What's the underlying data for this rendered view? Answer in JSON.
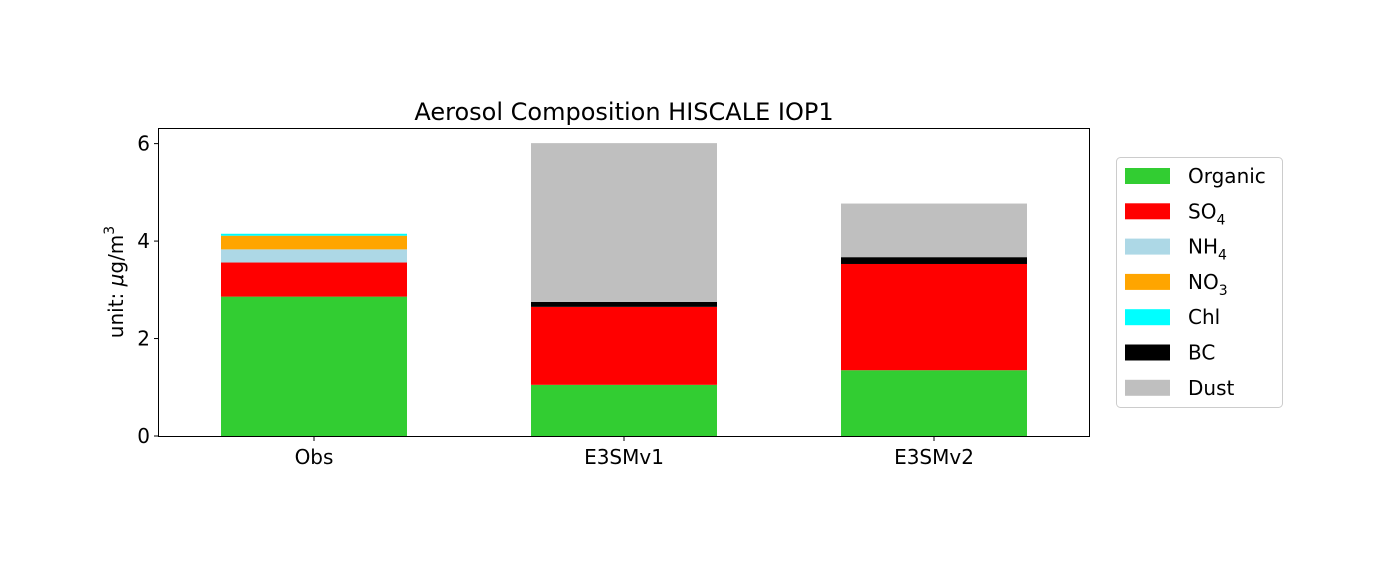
{
  "chart_data": {
    "type": "bar",
    "stacked": true,
    "title": "Aerosol Composition  HISCALE IOP1",
    "xlabel": "",
    "ylabel": {
      "prefix": "unit: ",
      "mu": "μ",
      "unit": "g/m",
      "sup": "3"
    },
    "ylim": [
      0,
      6.3
    ],
    "yticks": [
      0,
      2,
      4,
      6
    ],
    "ytick_labels": [
      "0",
      "2",
      "4",
      "6"
    ],
    "categories": [
      "Obs",
      "E3SMv1",
      "E3SMv2"
    ],
    "grid": false,
    "legend_position": "right",
    "series": [
      {
        "name": "Organic",
        "label": {
          "base": "Organic",
          "sub": ""
        },
        "color": "#32cd32",
        "values": [
          2.86,
          1.05,
          1.35
        ]
      },
      {
        "name": "SO4",
        "label": {
          "base": "SO",
          "sub": "4"
        },
        "color": "#ff0000",
        "values": [
          0.7,
          1.6,
          2.18
        ]
      },
      {
        "name": "NH4",
        "label": {
          "base": "NH",
          "sub": "4"
        },
        "color": "#add8e6",
        "values": [
          0.27,
          0.0,
          0.0
        ]
      },
      {
        "name": "NO3",
        "label": {
          "base": "NO",
          "sub": "3"
        },
        "color": "#ffa500",
        "values": [
          0.28,
          0.0,
          0.0
        ]
      },
      {
        "name": "Chl",
        "label": {
          "base": "Chl",
          "sub": ""
        },
        "color": "#00ffff",
        "values": [
          0.04,
          0.0,
          0.0
        ]
      },
      {
        "name": "BC",
        "label": {
          "base": "BC",
          "sub": ""
        },
        "color": "#000000",
        "values": [
          0.0,
          0.1,
          0.14
        ]
      },
      {
        "name": "Dust",
        "label": {
          "base": "Dust",
          "sub": ""
        },
        "color": "#bfbfbf",
        "values": [
          0.0,
          3.26,
          1.1
        ]
      }
    ]
  }
}
